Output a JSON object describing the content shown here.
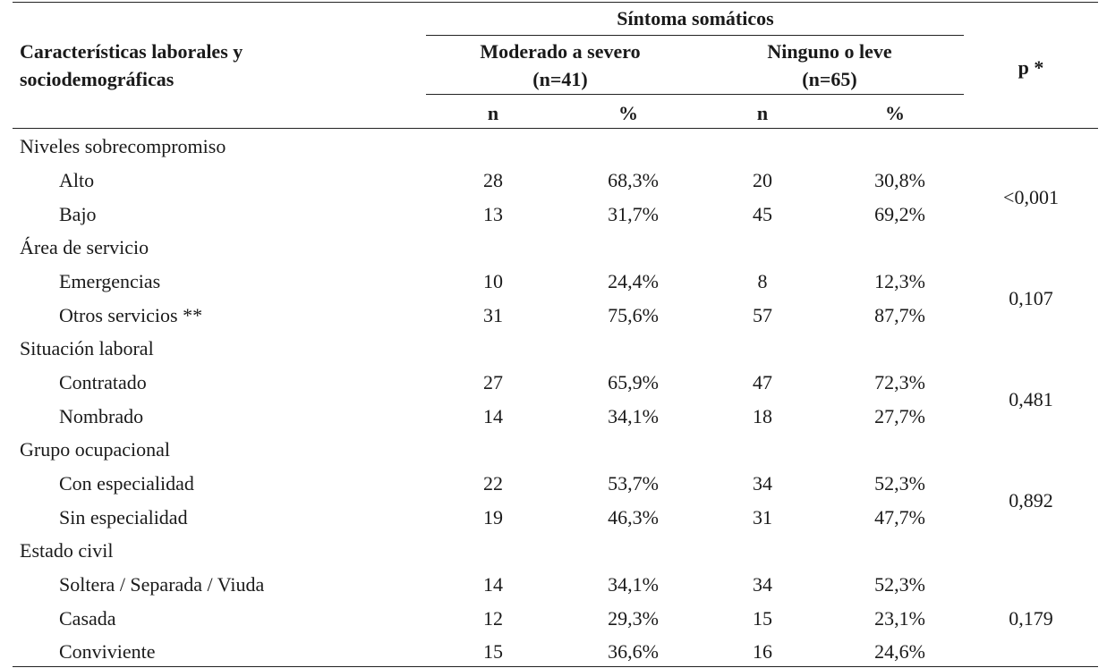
{
  "header": {
    "characteristics_line1": "Características laborales y",
    "characteristics_line2": "sociodemográficas",
    "group_title": "Síntoma somáticos",
    "col_a_name": "Moderado a severo",
    "col_a_n": "(n=41)",
    "col_b_name": "Ninguno o leve",
    "col_b_n": "(n=65)",
    "p_label": "p *",
    "n_label": "n",
    "pct_label": "%"
  },
  "sections": [
    {
      "title": "Niveles sobrecompromiso",
      "p": "<0,001",
      "rows": [
        {
          "label": "Alto",
          "n1": "28",
          "pct1": "68,3%",
          "n2": "20",
          "pct2": "30,8%"
        },
        {
          "label": "Bajo",
          "n1": "13",
          "pct1": "31,7%",
          "n2": "45",
          "pct2": "69,2%"
        }
      ]
    },
    {
      "title": "Área de servicio",
      "p": "0,107",
      "rows": [
        {
          "label": "Emergencias",
          "n1": "10",
          "pct1": "24,4%",
          "n2": "8",
          "pct2": "12,3%"
        },
        {
          "label": "Otros servicios **",
          "n1": "31",
          "pct1": "75,6%",
          "n2": "57",
          "pct2": "87,7%"
        }
      ]
    },
    {
      "title": "Situación laboral",
      "p": "0,481",
      "rows": [
        {
          "label": "Contratado",
          "n1": "27",
          "pct1": "65,9%",
          "n2": "47",
          "pct2": "72,3%"
        },
        {
          "label": "Nombrado",
          "n1": "14",
          "pct1": "34,1%",
          "n2": "18",
          "pct2": "27,7%"
        }
      ]
    },
    {
      "title": "Grupo ocupacional",
      "p": "0,892",
      "rows": [
        {
          "label": "Con especialidad",
          "n1": "22",
          "pct1": "53,7%",
          "n2": "34",
          "pct2": "52,3%"
        },
        {
          "label": "Sin especialidad",
          "n1": "19",
          "pct1": "46,3%",
          "n2": "31",
          "pct2": "47,7%"
        }
      ]
    },
    {
      "title": "Estado civil",
      "p": "0,179",
      "rows": [
        {
          "label": "Soltera / Separada / Viuda",
          "n1": "14",
          "pct1": "34,1%",
          "n2": "34",
          "pct2": "52,3%"
        },
        {
          "label": "Casada",
          "n1": "12",
          "pct1": "29,3%",
          "n2": "15",
          "pct2": "23,1%"
        },
        {
          "label": "Conviviente",
          "n1": "15",
          "pct1": "36,6%",
          "n2": "16",
          "pct2": "24,6%"
        }
      ]
    }
  ]
}
